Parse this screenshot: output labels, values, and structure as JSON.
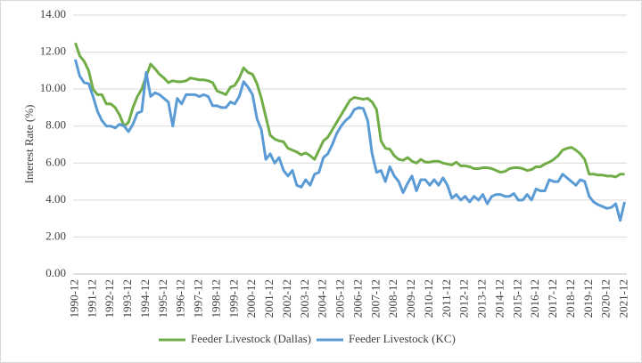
{
  "chart_data": {
    "type": "line",
    "ylabel": "Interest Rate (%)",
    "categories": [
      "1990-12",
      null,
      null,
      null,
      "1991-12",
      null,
      null,
      null,
      "1992-12",
      null,
      null,
      null,
      "1993-12",
      null,
      null,
      null,
      "1994-12",
      null,
      null,
      null,
      "1995-12",
      null,
      null,
      null,
      "1996-12",
      null,
      null,
      null,
      "1997-12",
      null,
      null,
      null,
      "1998-12",
      null,
      null,
      null,
      "1999-12",
      null,
      null,
      null,
      "2000-12",
      null,
      null,
      null,
      "2001-12",
      null,
      null,
      null,
      "2002-12",
      null,
      null,
      null,
      "2003-12",
      null,
      null,
      null,
      "2004-12",
      null,
      null,
      null,
      "2005-12",
      null,
      null,
      null,
      "2006-12",
      null,
      null,
      null,
      "2007-12",
      null,
      null,
      null,
      "2008-12",
      null,
      null,
      null,
      "2009-12",
      null,
      null,
      null,
      "2010-12",
      null,
      null,
      null,
      "2011-12",
      null,
      null,
      null,
      "2012-12",
      null,
      null,
      null,
      "2013-12",
      null,
      null,
      null,
      "2014-12",
      null,
      null,
      null,
      "2015-12",
      null,
      null,
      null,
      "2016-12",
      null,
      null,
      null,
      "2017-12",
      null,
      null,
      null,
      "2018-12",
      null,
      null,
      null,
      "2019-12",
      null,
      null,
      null,
      "2020-12",
      null,
      null,
      null,
      "2021-12"
    ],
    "series": [
      {
        "name": "Feeder Livestock (Dallas)",
        "color": "#70ad47",
        "values": [
          12.5,
          11.8,
          11.5,
          11.0,
          10.0,
          9.7,
          9.7,
          9.2,
          9.2,
          9.0,
          8.6,
          8.0,
          8.2,
          9.0,
          9.6,
          10.0,
          10.7,
          11.35,
          11.1,
          10.8,
          10.6,
          10.35,
          10.45,
          10.4,
          10.4,
          10.45,
          10.6,
          10.55,
          10.5,
          10.5,
          10.45,
          10.35,
          9.9,
          9.8,
          9.7,
          10.1,
          10.2,
          10.6,
          11.15,
          10.9,
          10.8,
          10.3,
          9.5,
          8.5,
          7.5,
          7.3,
          7.2,
          7.15,
          6.8,
          6.7,
          6.6,
          6.45,
          6.55,
          6.4,
          6.2,
          6.7,
          7.2,
          7.4,
          7.8,
          8.2,
          8.6,
          9.0,
          9.4,
          9.55,
          9.5,
          9.45,
          9.5,
          9.3,
          8.9,
          7.2,
          6.8,
          6.75,
          6.4,
          6.2,
          6.15,
          6.3,
          6.1,
          6.0,
          6.2,
          6.05,
          6.05,
          6.1,
          6.1,
          6.0,
          5.95,
          5.9,
          6.05,
          5.85,
          5.85,
          5.8,
          5.7,
          5.7,
          5.75,
          5.75,
          5.7,
          5.6,
          5.5,
          5.55,
          5.7,
          5.75,
          5.75,
          5.7,
          5.6,
          5.65,
          5.8,
          5.8,
          5.95,
          6.05,
          6.2,
          6.4,
          6.7,
          6.8,
          6.85,
          6.7,
          6.5,
          6.2,
          5.4,
          5.4,
          5.35,
          5.35,
          5.3,
          5.3,
          5.25,
          5.4,
          5.4
        ]
      },
      {
        "name": "Feeder Livestock (KC)",
        "color": "#5b9bd5",
        "values": [
          11.6,
          10.7,
          10.35,
          10.3,
          9.6,
          8.8,
          8.3,
          8.0,
          8.0,
          7.9,
          8.1,
          8.0,
          7.7,
          8.1,
          8.7,
          8.8,
          10.9,
          9.6,
          9.8,
          9.7,
          9.5,
          9.3,
          8.0,
          9.5,
          9.2,
          9.7,
          9.7,
          9.7,
          9.6,
          9.7,
          9.6,
          9.1,
          9.1,
          9.0,
          9.0,
          9.3,
          9.2,
          9.6,
          10.4,
          10.1,
          9.7,
          8.4,
          7.8,
          6.2,
          6.5,
          6.0,
          6.3,
          5.6,
          5.3,
          5.6,
          4.8,
          4.7,
          5.1,
          4.8,
          5.4,
          5.5,
          6.3,
          6.5,
          7.0,
          7.6,
          8.0,
          8.3,
          8.5,
          8.9,
          9.0,
          8.95,
          8.3,
          6.5,
          5.5,
          5.6,
          5.0,
          5.8,
          5.3,
          5.0,
          4.4,
          4.9,
          5.3,
          4.5,
          5.1,
          5.1,
          4.8,
          5.1,
          4.8,
          5.2,
          4.8,
          4.1,
          4.3,
          4.0,
          4.2,
          3.9,
          4.2,
          4.0,
          4.3,
          3.8,
          4.2,
          4.3,
          4.3,
          4.2,
          4.2,
          4.35,
          4.0,
          4.0,
          4.3,
          4.0,
          4.6,
          4.5,
          4.5,
          5.1,
          5.0,
          5.0,
          5.4,
          5.2,
          5.0,
          4.8,
          5.1,
          5.0,
          4.2,
          3.9,
          3.75,
          3.65,
          3.55,
          3.6,
          3.8,
          2.9,
          3.9
        ]
      }
    ],
    "ylim": [
      0,
      14
    ],
    "yticks": [
      {
        "value": 0,
        "label": "0.00"
      },
      {
        "value": 2,
        "label": "2.00"
      },
      {
        "value": 4,
        "label": "4.00"
      },
      {
        "value": 6,
        "label": "6.00"
      },
      {
        "value": 8,
        "label": "8.00"
      },
      {
        "value": 10,
        "label": "10.00"
      },
      {
        "value": 12,
        "label": "12.00"
      },
      {
        "value": 14,
        "label": "14.00"
      }
    ],
    "grid": true,
    "legend": "bottom"
  }
}
